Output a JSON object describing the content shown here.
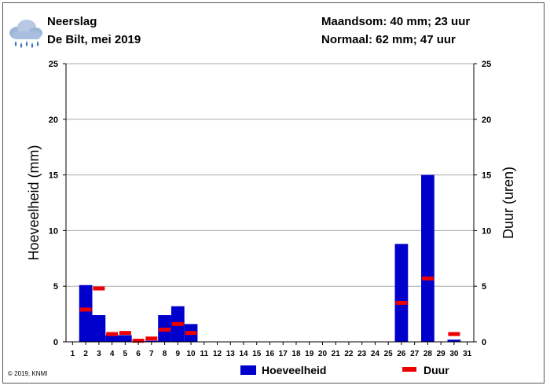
{
  "header": {
    "title": "Neerslag",
    "subtitle": "De Bilt, mei 2019",
    "month_sum": "Maandsom: 40 mm; 23 uur",
    "normal": "Normaal: 62 mm; 47 uur"
  },
  "icon": "rain-cloud-icon",
  "copyright": "© 2019, KNMI",
  "colors": {
    "bar": "#0000cc",
    "duration": "#ee0000",
    "grid": "#aaaaaa"
  },
  "chart_data": {
    "type": "bar",
    "xlabel": "",
    "ylabel_left": "Hoeveelheid (mm)",
    "ylabel_right": "Duur (uren)",
    "ylim": [
      0,
      25
    ],
    "yticks": [
      0,
      5,
      10,
      15,
      20,
      25
    ],
    "grid": true,
    "legend_position": "bottom",
    "categories": [
      "1",
      "2",
      "3",
      "4",
      "5",
      "6",
      "7",
      "8",
      "9",
      "10",
      "11",
      "12",
      "13",
      "14",
      "15",
      "16",
      "17",
      "18",
      "19",
      "20",
      "21",
      "22",
      "23",
      "24",
      "25",
      "26",
      "27",
      "28",
      "29",
      "30",
      "31"
    ],
    "series": [
      {
        "name": "Hoeveelheid",
        "unit": "mm",
        "values": [
          0,
          5.1,
          2.4,
          0.6,
          0.6,
          0,
          0.1,
          2.4,
          3.2,
          1.6,
          0,
          0,
          0,
          0,
          0,
          0,
          0,
          0,
          0,
          0,
          0,
          0,
          0,
          0,
          0,
          8.8,
          0,
          15.0,
          0,
          0.2,
          0
        ]
      },
      {
        "name": "Duur",
        "unit": "uren",
        "values": [
          null,
          2.9,
          4.8,
          0.7,
          0.8,
          0.1,
          0.3,
          1.1,
          1.6,
          0.8,
          null,
          null,
          null,
          null,
          null,
          null,
          null,
          null,
          null,
          null,
          null,
          null,
          null,
          null,
          null,
          3.5,
          null,
          5.7,
          null,
          0.7,
          null
        ]
      }
    ]
  }
}
